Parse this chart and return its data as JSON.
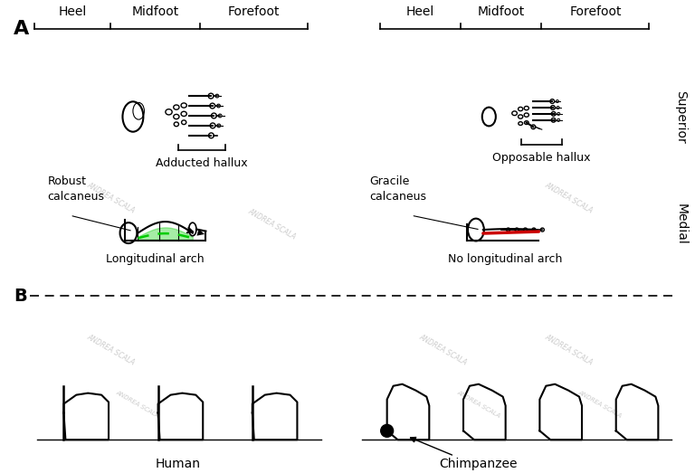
{
  "title": "",
  "bg_color": "#ffffff",
  "label_A": "A",
  "label_B": "B",
  "left_top_labels": [
    "Heel",
    "Midfoot",
    "Forefoot"
  ],
  "right_top_labels": [
    "Heel",
    "Midfoot",
    "Forefoot"
  ],
  "right_side_labels": [
    "Superior",
    "Medial"
  ],
  "left_annotations": [
    "Robust\ncalcaneus",
    "Adducted hallux",
    "Longitudinal arch"
  ],
  "right_annotations": [
    "Gracile\ncalcaneus",
    "Opposable hallux",
    "No longitudinal arch"
  ],
  "bottom_labels": [
    "Human",
    "Chimpanzee"
  ],
  "green_color": "#00cc00",
  "red_color": "#cc0000",
  "dashed_color": "#333333",
  "text_color": "#000000",
  "watermark": "ANDREA SCALA"
}
